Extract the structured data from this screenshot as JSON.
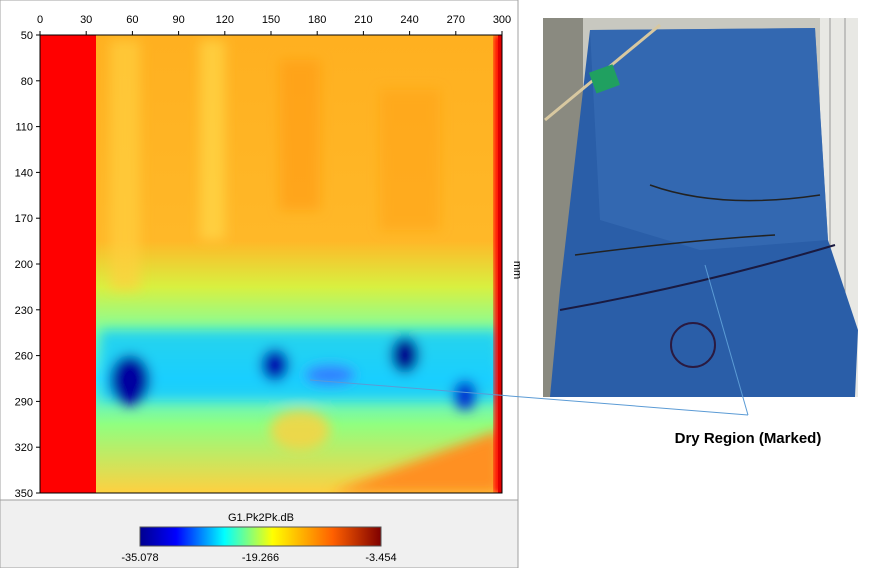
{
  "plot": {
    "x_ticks": [
      0,
      30,
      60,
      90,
      120,
      150,
      180,
      210,
      240,
      270,
      300
    ],
    "y_ticks": [
      50,
      80,
      110,
      140,
      170,
      200,
      230,
      260,
      290,
      320,
      350
    ],
    "y_unit": "mm",
    "colorbar": {
      "title": "G1.Pk2Pk.dB",
      "labels": [
        -35.078,
        -19.266,
        -3.454
      ]
    }
  },
  "annotation": "Dry Region (Marked)"
}
